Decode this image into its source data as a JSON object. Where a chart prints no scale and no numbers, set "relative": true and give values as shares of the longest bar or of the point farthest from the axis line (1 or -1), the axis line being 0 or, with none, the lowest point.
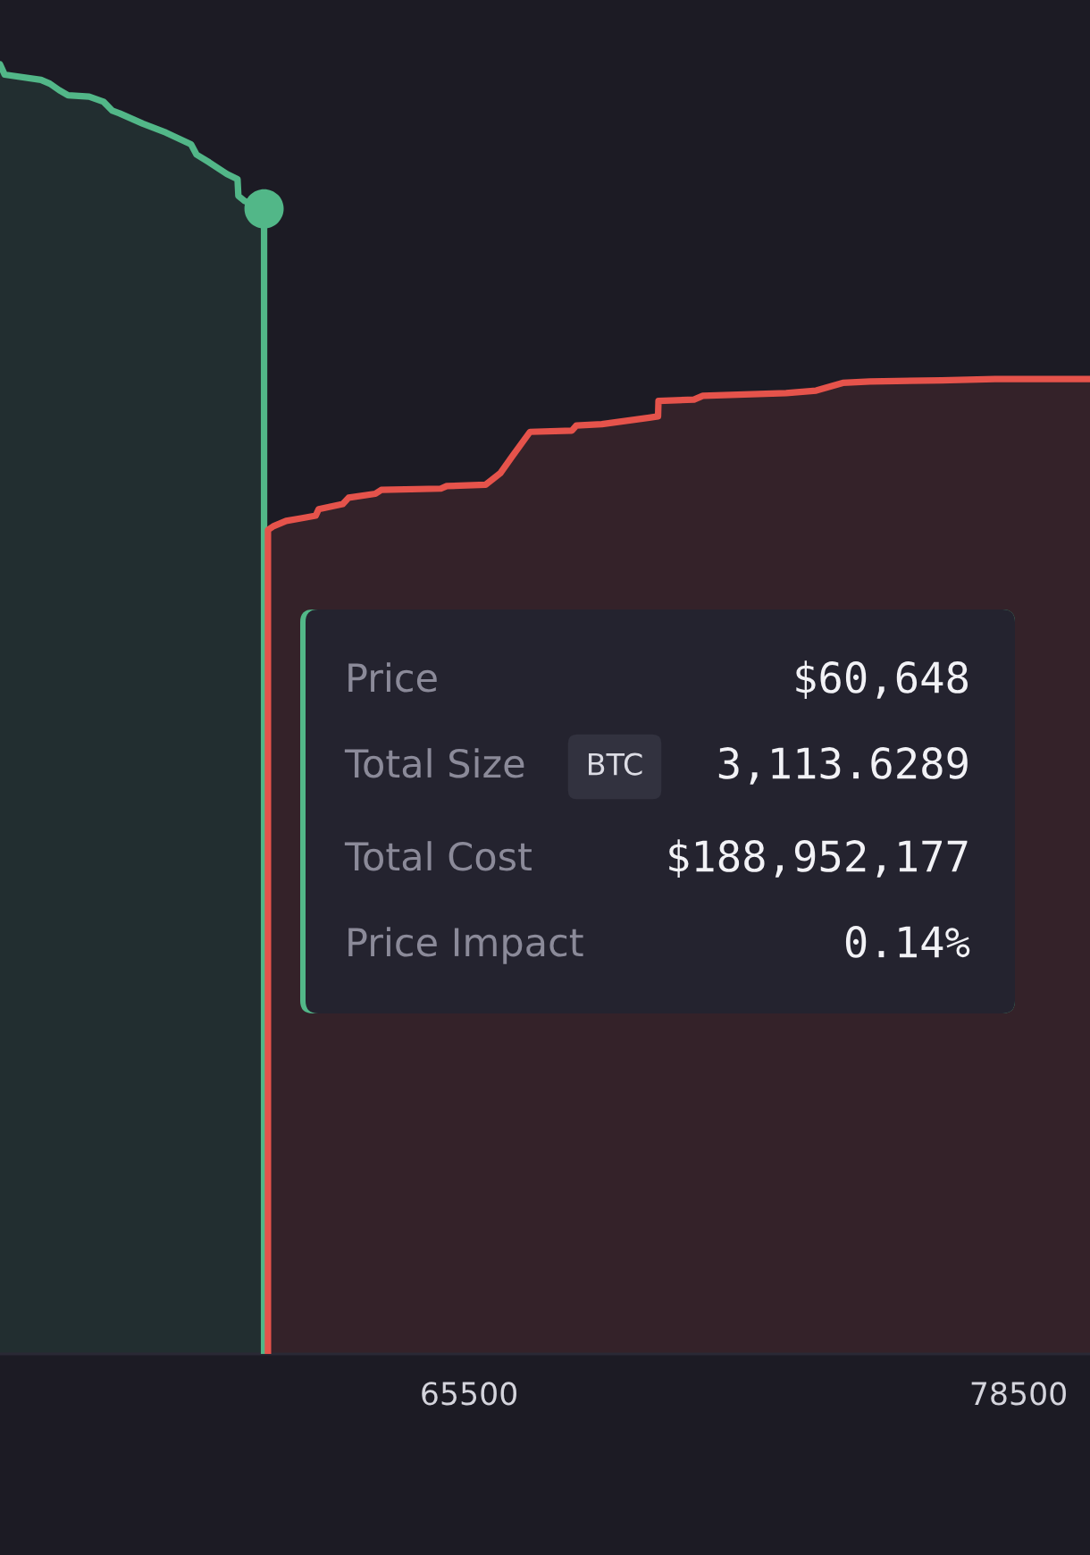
{
  "chart_data": {
    "type": "area",
    "relative": true,
    "xlim": [
      54400,
      80190
    ],
    "xticks": [
      65500,
      78500
    ],
    "series": [
      {
        "color": "#52b788",
        "x": [
          54400,
          54510,
          55370,
          55580,
          55800,
          56010,
          56510,
          56850,
          57060,
          57230,
          57780,
          58330,
          58920,
          59050,
          59350,
          59770,
          60020,
          60040,
          60190,
          60648,
          60648
        ],
        "values": [
          1.0,
          0.992,
          0.988,
          0.985,
          0.98,
          0.976,
          0.975,
          0.971,
          0.964,
          0.962,
          0.954,
          0.947,
          0.938,
          0.93,
          0.924,
          0.915,
          0.911,
          0.898,
          0.894,
          0.888,
          0
        ]
      },
      {
        "color": "#e5534b",
        "x": [
          60740,
          60740,
          60880,
          61170,
          61520,
          61870,
          61940,
          62510,
          62650,
          63280,
          63420,
          64830,
          64970,
          65890,
          66240,
          66520,
          66940,
          67930,
          68040,
          68640,
          69760,
          69970,
          69980,
          70820,
          71030,
          73000,
          73710,
          74340,
          74980,
          76670,
          77940,
          80190
        ],
        "values": [
          0,
          0.639,
          0.642,
          0.646,
          0.648,
          0.65,
          0.655,
          0.659,
          0.664,
          0.667,
          0.67,
          0.671,
          0.673,
          0.674,
          0.683,
          0.696,
          0.715,
          0.716,
          0.72,
          0.721,
          0.726,
          0.727,
          0.739,
          0.74,
          0.743,
          0.745,
          0.747,
          0.753,
          0.754,
          0.755,
          0.756,
          0.756
        ]
      },
      {
        "type": "scatter",
        "color": "#52b788",
        "marker": "circle",
        "x": [
          60648
        ],
        "values": [
          0.888
        ]
      }
    ],
    "annotations": [
      "Price",
      "$60,648",
      "Total Size",
      "BTC",
      "3,113.6289",
      "Total Cost",
      "$188,952,177",
      "Price Impact",
      "0.14%"
    ]
  }
}
